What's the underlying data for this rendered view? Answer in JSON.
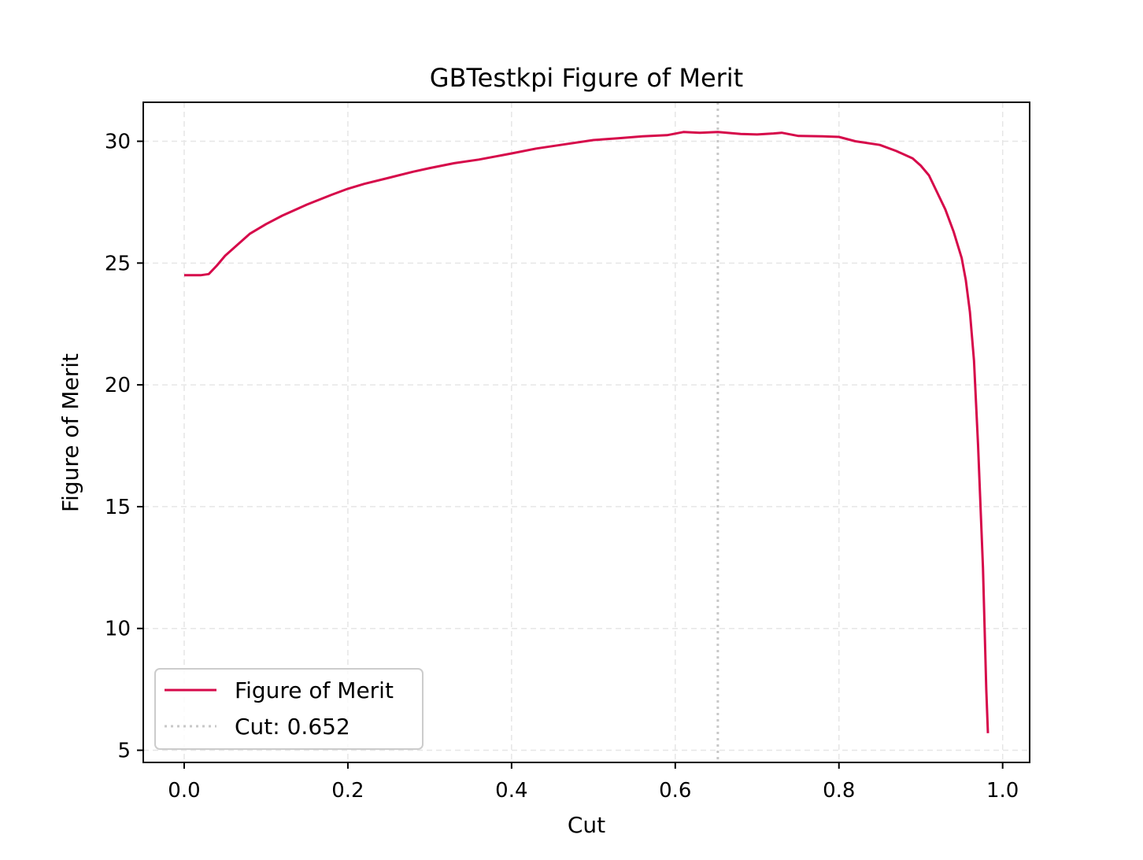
{
  "chart_data": {
    "type": "line",
    "title": "GBTestkpi Figure of Merit",
    "xlabel": "Cut",
    "ylabel": "Figure of Merit",
    "xlim": [
      -0.05,
      1.033
    ],
    "ylim": [
      4.5,
      31.6
    ],
    "grid": true,
    "legend_position": "lower-left",
    "x_ticks": [
      0.0,
      0.2,
      0.4,
      0.6,
      0.8,
      1.0
    ],
    "x_tick_labels": [
      "0.0",
      "0.2",
      "0.4",
      "0.6",
      "0.8",
      "1.0"
    ],
    "y_ticks": [
      5,
      10,
      15,
      20,
      25,
      30
    ],
    "y_tick_labels": [
      "5",
      "10",
      "15",
      "20",
      "25",
      "30"
    ],
    "colors": {
      "series": "#d6094a",
      "cut_line": "#c8c8c8",
      "grid": "#e6e6e6"
    },
    "series": [
      {
        "name": "Figure of Merit",
        "x": [
          0.0,
          0.01,
          0.02,
          0.03,
          0.04,
          0.05,
          0.06,
          0.08,
          0.1,
          0.12,
          0.15,
          0.18,
          0.2,
          0.22,
          0.25,
          0.28,
          0.3,
          0.33,
          0.36,
          0.4,
          0.43,
          0.46,
          0.5,
          0.53,
          0.56,
          0.59,
          0.61,
          0.63,
          0.652,
          0.68,
          0.7,
          0.72,
          0.73,
          0.75,
          0.78,
          0.8,
          0.82,
          0.85,
          0.87,
          0.89,
          0.9,
          0.91,
          0.92,
          0.93,
          0.94,
          0.95,
          0.955,
          0.96,
          0.965,
          0.97,
          0.973,
          0.976,
          0.978,
          0.98,
          0.982
        ],
        "values": [
          24.5,
          24.5,
          24.5,
          24.55,
          24.9,
          25.3,
          25.6,
          26.2,
          26.6,
          26.95,
          27.4,
          27.8,
          28.05,
          28.25,
          28.5,
          28.75,
          28.9,
          29.1,
          29.25,
          29.5,
          29.7,
          29.85,
          30.05,
          30.12,
          30.2,
          30.25,
          30.38,
          30.35,
          30.38,
          30.3,
          30.28,
          30.32,
          30.35,
          30.22,
          30.2,
          30.18,
          30.0,
          29.85,
          29.6,
          29.3,
          29.0,
          28.6,
          27.9,
          27.2,
          26.3,
          25.2,
          24.3,
          23.0,
          21.0,
          17.5,
          15.0,
          12.5,
          10.0,
          7.5,
          5.7
        ]
      }
    ],
    "cut": {
      "value": 0.652,
      "label": "Cut: 0.652"
    }
  }
}
